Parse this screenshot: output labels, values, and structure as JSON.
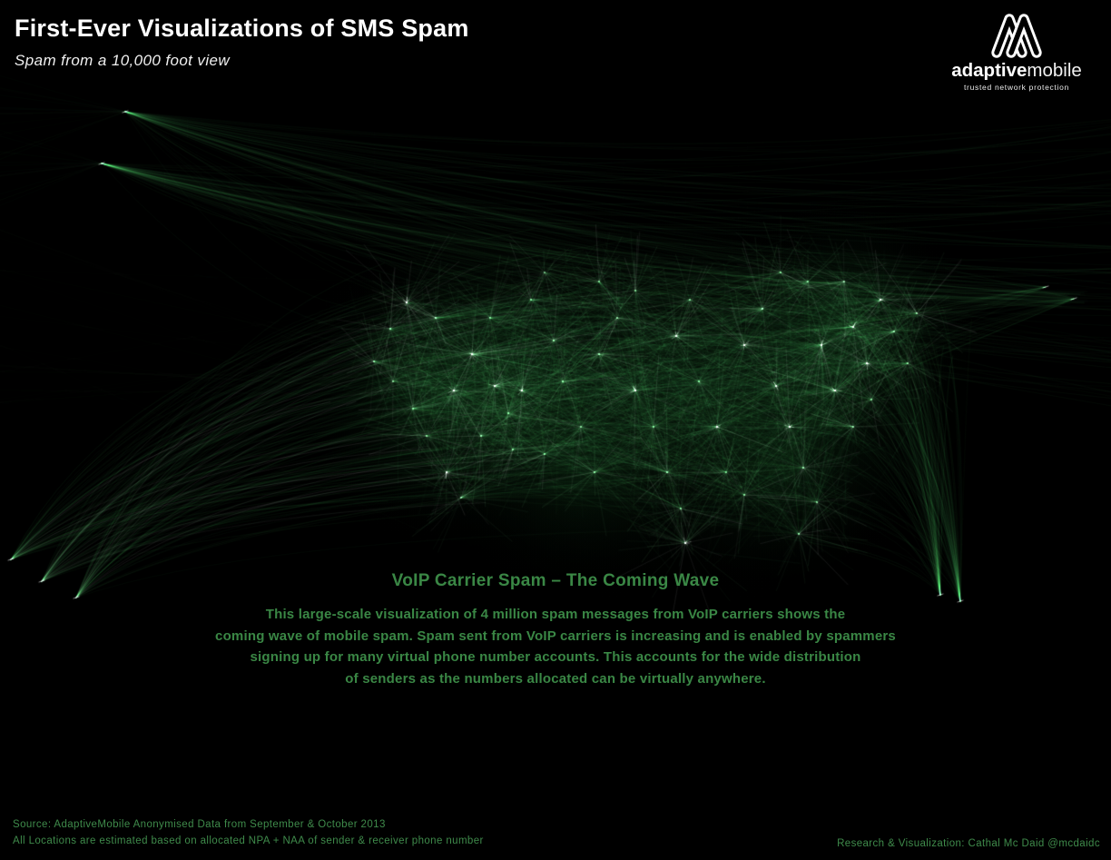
{
  "header": {
    "title": "First-Ever Visualizations of SMS Spam",
    "subtitle": "Spam from a 10,000 foot view"
  },
  "logo": {
    "mark": "adaptivemobile-monogram",
    "brand_bold": "adaptive",
    "brand_light": "mobile",
    "tagline": "trusted network protection"
  },
  "visualization": {
    "type": "flow-map network visualization",
    "region": "continental United States",
    "flow_color": "green"
  },
  "caption": {
    "headline": "VoIP Carrier Spam – The Coming Wave",
    "body_lines": [
      "This large-scale visualization of 4 million spam messages from VoIP carriers shows the",
      "coming wave of mobile spam. Spam sent from VoIP carriers is increasing and is enabled by spammers",
      "signing up for many virtual phone number accounts. This accounts for the wide distribution",
      "of senders as the numbers allocated can be virtually anywhere."
    ]
  },
  "footer": {
    "source_line1": "Source: AdaptiveMobile Anonymised Data from September & October 2013",
    "source_line2": "All Locations are estimated based on allocated NPA + NAA of sender & receiver phone number",
    "credit": "Research & Visualization: Cathal Mc Daid @mcdaidc"
  },
  "colors": {
    "background": "#000000",
    "heading_text": "#ffffff",
    "caption_green": "#3a8745",
    "footer_green": "#3f8b4b",
    "viz_green_base": "#2e9e46",
    "viz_green_bright": "#6fd183",
    "viz_white": "#ffffff"
  }
}
